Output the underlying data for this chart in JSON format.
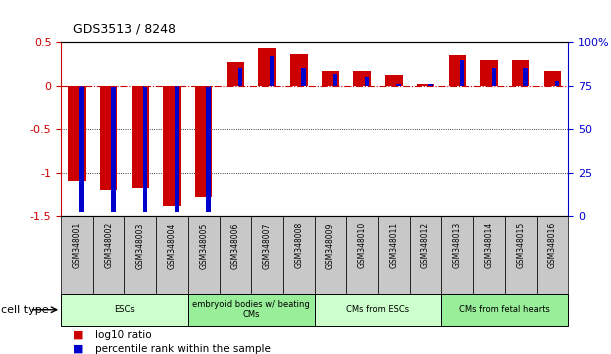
{
  "title": "GDS3513 / 8248",
  "samples": [
    "GSM348001",
    "GSM348002",
    "GSM348003",
    "GSM348004",
    "GSM348005",
    "GSM348006",
    "GSM348007",
    "GSM348008",
    "GSM348009",
    "GSM348010",
    "GSM348011",
    "GSM348012",
    "GSM348013",
    "GSM348014",
    "GSM348015",
    "GSM348016"
  ],
  "log10_ratio": [
    -1.1,
    -1.2,
    -1.18,
    -1.38,
    -1.28,
    0.28,
    0.44,
    0.37,
    0.17,
    0.17,
    0.12,
    0.02,
    0.35,
    0.3,
    0.3,
    0.17
  ],
  "percentile_rank": [
    2,
    2,
    2,
    2,
    2,
    85,
    92,
    85,
    82,
    80,
    76,
    76,
    90,
    85,
    85,
    78
  ],
  "bar_color_red": "#CC0000",
  "bar_color_blue": "#0000CC",
  "dashed_line_color": "#CC0000",
  "ylim_left": [
    -1.5,
    0.5
  ],
  "ylim_right": [
    0,
    100
  ],
  "yticks_left": [
    -1.5,
    -1.0,
    -0.5,
    0.0,
    0.5
  ],
  "yticks_right": [
    0,
    25,
    50,
    75,
    100
  ],
  "dotted_lines": [
    -0.5,
    -1.0
  ],
  "dashed_line_y": 0.0,
  "cell_groups": [
    {
      "label": "ESCs",
      "start": 0,
      "end": 3,
      "color": "#CCFFCC"
    },
    {
      "label": "embryoid bodies w/ beating\nCMs",
      "start": 4,
      "end": 7,
      "color": "#99EE99"
    },
    {
      "label": "CMs from ESCs",
      "start": 8,
      "end": 11,
      "color": "#CCFFCC"
    },
    {
      "label": "CMs from fetal hearts",
      "start": 12,
      "end": 15,
      "color": "#99EE99"
    }
  ],
  "legend_red_label": "log10 ratio",
  "legend_blue_label": "percentile rank within the sample",
  "cell_type_label": "cell type",
  "background_color": "#FFFFFF",
  "plot_bg_color": "#FFFFFF",
  "right_axis_color": "#0000CC",
  "left_axis_color": "#CC0000",
  "label_bg_color": "#C8C8C8"
}
